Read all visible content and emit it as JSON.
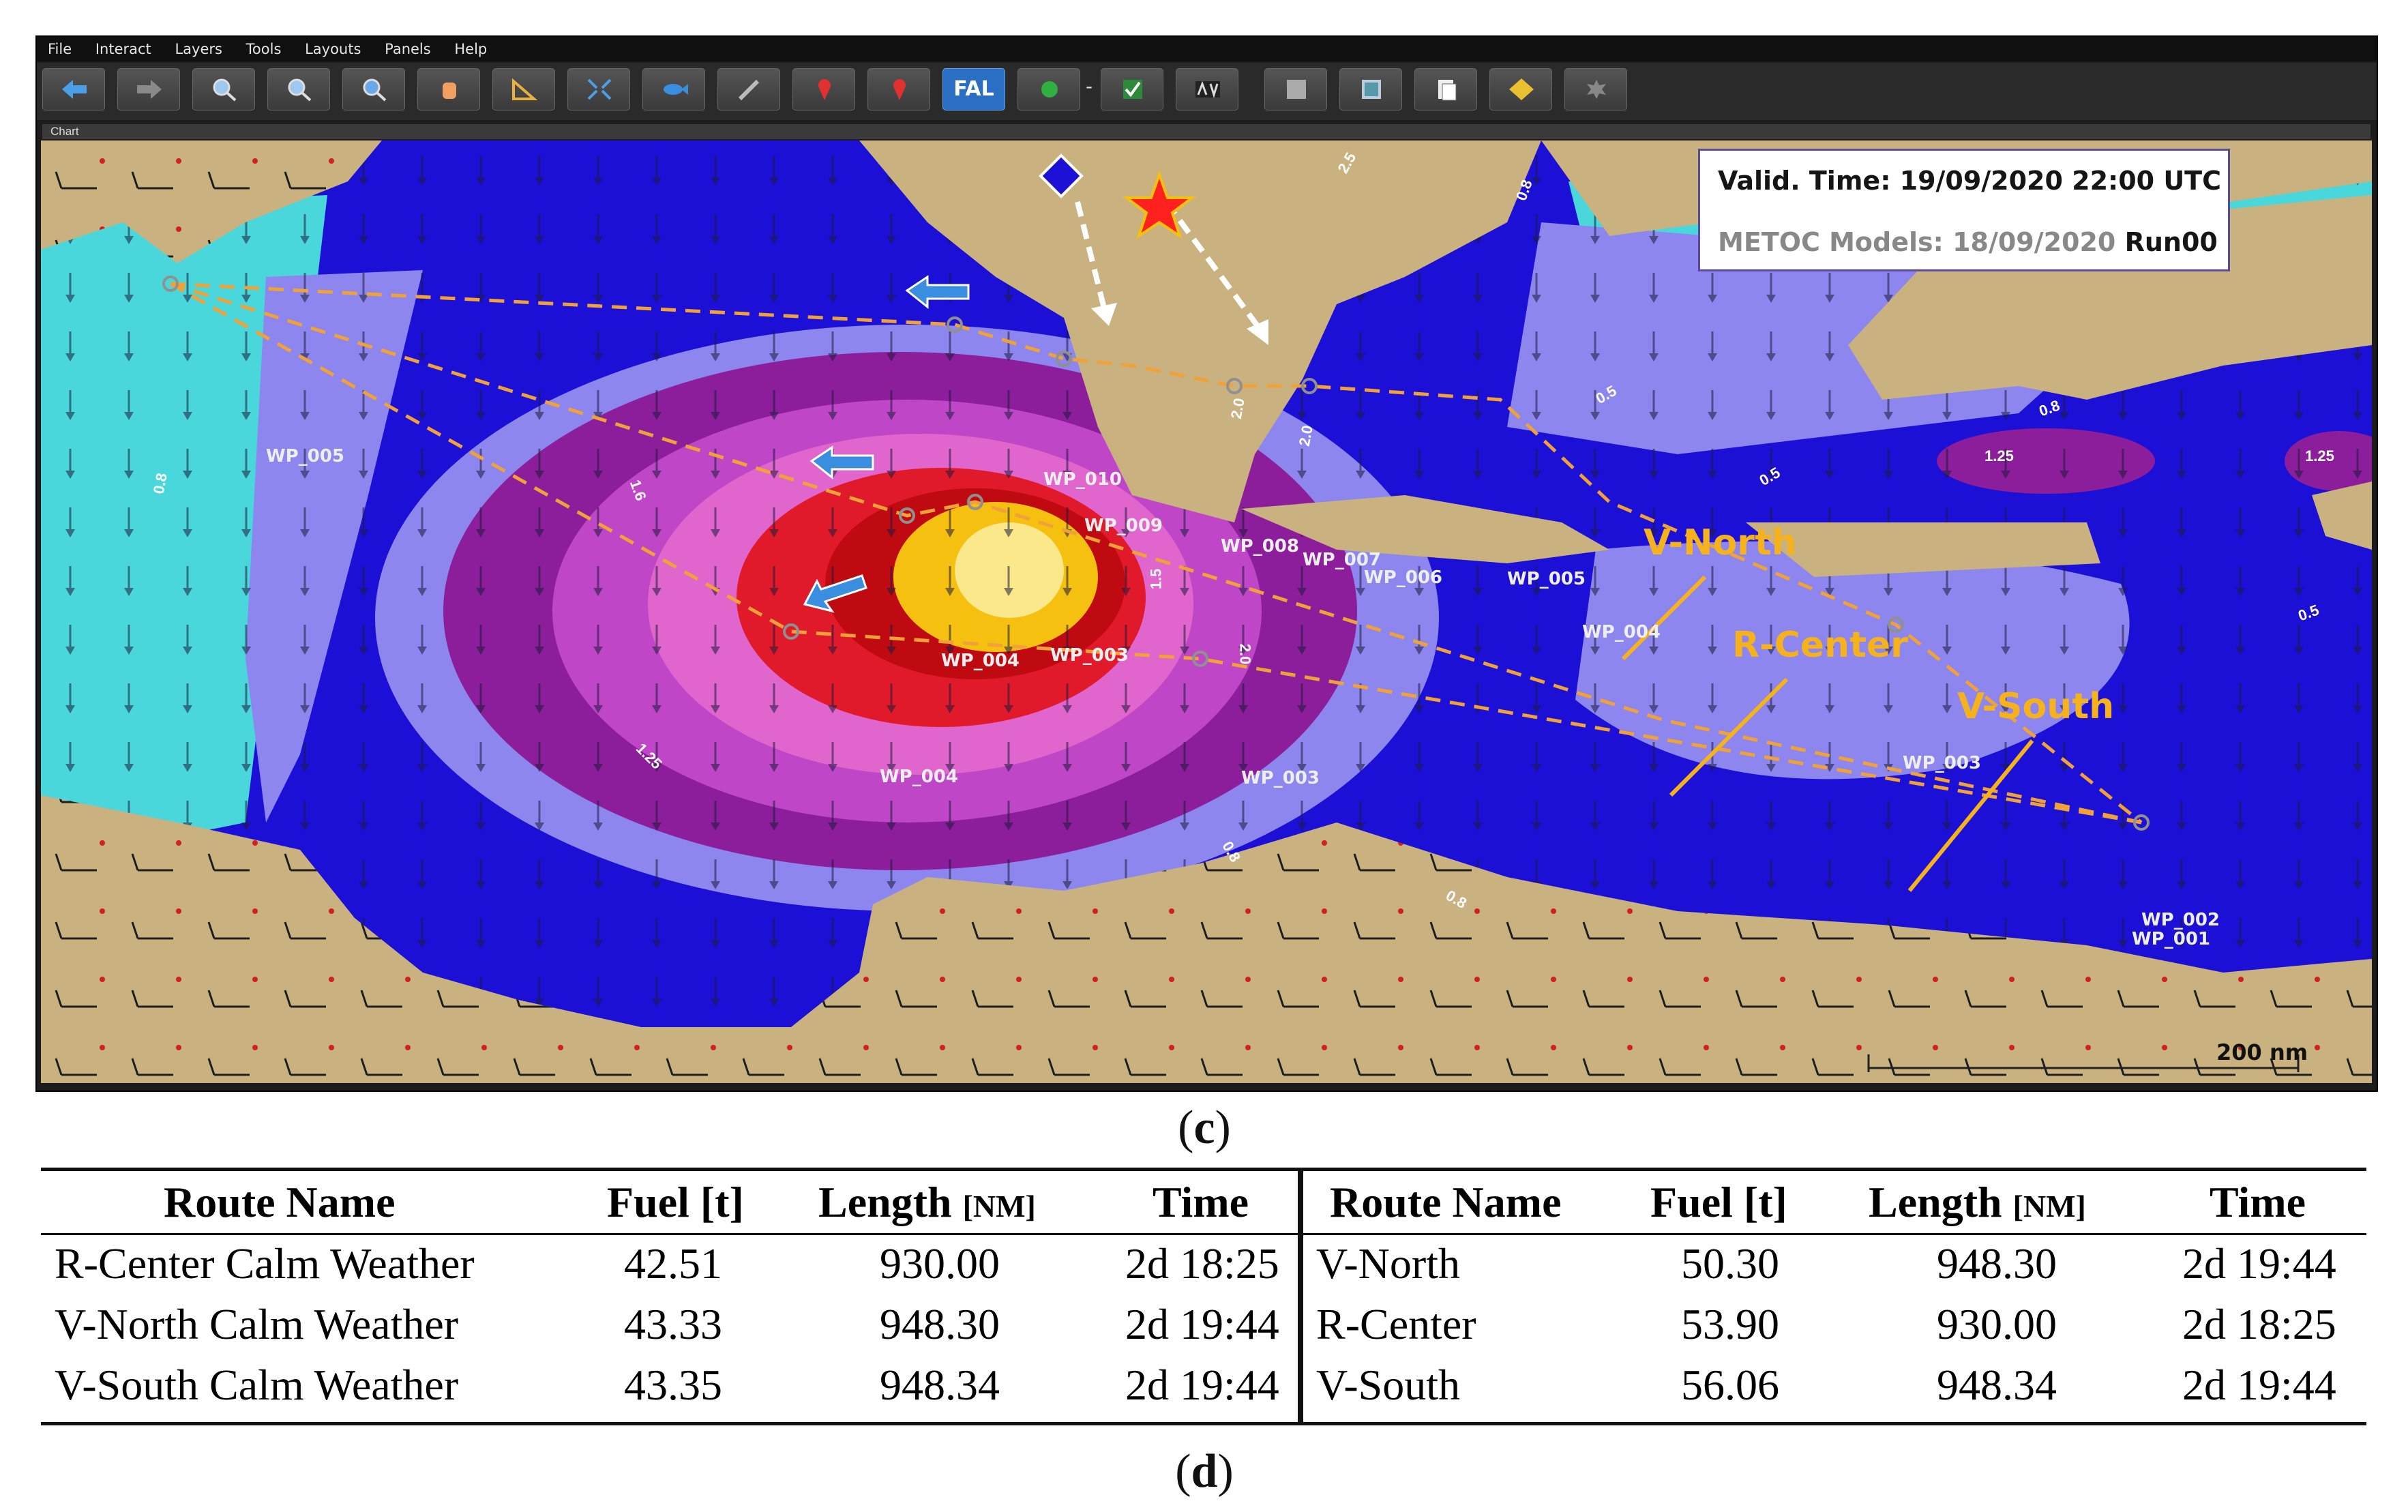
{
  "menu": [
    "File",
    "Interact",
    "Layers",
    "Tools",
    "Layouts",
    "Panels",
    "Help"
  ],
  "toolbar_icons": [
    "back-arrow-icon",
    "forward-arrow-icon",
    "zoom-in-icon",
    "zoom-out-icon",
    "zoom-extent-icon",
    "pan-hand-icon",
    "measure-ruler-icon",
    "fit-window-icon",
    "fish-icon",
    "wrench-icon",
    "pin-route-icon",
    "pin-icon",
    "fal-button",
    "green-dot-icon",
    "check-icon",
    "av-icon",
    "square-icon",
    "grid-icon",
    "document-icon",
    "warning-icon",
    "settings-icon"
  ],
  "toolbar": {
    "fal_label": "FAL",
    "separator": "-"
  },
  "chart_tab": "Chart",
  "info_box": {
    "valid_time": "Valid. Time: 19/09/2020 22:00 UTC",
    "models_prefix": "METOC Models: 18/09/2020 ",
    "run": "Run00"
  },
  "route_labels": {
    "north": "V-North",
    "center": "R-Center",
    "south": "V-South"
  },
  "waypoints": [
    "WP_005",
    "WP_010",
    "WP_009",
    "WP_008",
    "WP_007",
    "WP_006",
    "WP_005",
    "WP_004",
    "WP_004",
    "WP_003",
    "WP_004",
    "WP_003",
    "WP_003",
    "WP_002",
    "WP_001"
  ],
  "contours": [
    "0.8",
    "1.6",
    "1.25",
    "2.5",
    "2.0",
    "1.5",
    "2.0",
    "0.8",
    "0.8",
    "0.8",
    "0.8",
    "0.5",
    "1.25",
    "1.25",
    "0.5",
    "0.5",
    "2.0"
  ],
  "scale": "200 nm",
  "captions": {
    "c": "c",
    "d": "d"
  },
  "table": {
    "headers": [
      "Route Name",
      "Fuel [t]",
      "Length",
      "[NM]",
      "Time"
    ],
    "left_rows": [
      [
        "R-Center Calm Weather",
        "42.51",
        "930.00",
        "2d 18:25"
      ],
      [
        "V-North Calm Weather",
        "43.33",
        "948.30",
        "2d 19:44"
      ],
      [
        "V-South Calm Weather",
        "43.35",
        "948.34",
        "2d 19:44"
      ]
    ],
    "right_rows": [
      [
        "V-North",
        "50.30",
        "948.30",
        "2d 19:44"
      ],
      [
        "R-Center",
        "53.90",
        "930.00",
        "2d 18:25"
      ],
      [
        "V-South",
        "56.06",
        "948.34",
        "2d 19:44"
      ]
    ]
  },
  "colors": {
    "land": "#c9b27f",
    "sea_cyan": "#49d7dc",
    "sea_lav": "#8c86ee",
    "sea_blue": "#1c0fd6",
    "route": "#f0a238",
    "label": "#f5b21c"
  }
}
